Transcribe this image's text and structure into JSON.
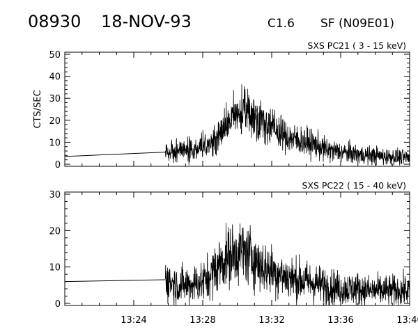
{
  "header": {
    "event_id": "08930",
    "date": "18-NOV-93",
    "goes_class": "C1.6",
    "flare_info": "SF (N09E01)"
  },
  "chart_data": [
    {
      "type": "line",
      "title": "SXS PC21  (  3 - 15 keV)",
      "ylabel": "CTS/SEC",
      "xlabel": "",
      "xlim": [
        "13:20",
        "13:40"
      ],
      "ylim": [
        0,
        50
      ],
      "yticks": [
        0,
        10,
        20,
        30,
        40,
        50
      ],
      "xtick_labels": [],
      "grid": false,
      "series": [
        {
          "x": [
            "13:20:00",
            "13:25:50",
            "13:26:30",
            "13:27:00",
            "13:27:30",
            "13:28:00",
            "13:28:30",
            "13:29:00",
            "13:29:30",
            "13:30:00",
            "13:30:30",
            "13:31:00",
            "13:31:30",
            "13:32:00",
            "13:32:30",
            "13:33:00",
            "13:33:30",
            "13:34:00",
            "13:34:30",
            "13:35:00",
            "13:35:30",
            "13:36:00",
            "13:36:30",
            "13:37:00",
            "13:37:30",
            "13:38:00",
            "13:38:30",
            "13:39:00",
            "13:39:30",
            "13:40:00"
          ],
          "values": [
            3.5,
            5.5,
            6,
            7,
            6.5,
            8,
            9,
            14,
            19,
            23,
            24,
            22,
            20,
            17,
            14,
            12,
            11,
            10,
            9,
            7,
            6,
            5.5,
            5,
            4.5,
            4,
            4,
            3.5,
            3.5,
            3,
            3
          ]
        }
      ]
    },
    {
      "type": "line",
      "title": "SXS PC22  ( 15 - 40 keV)",
      "ylabel": "",
      "xlabel": "",
      "xlim": [
        "13:20",
        "13:40"
      ],
      "ylim": [
        0,
        30
      ],
      "yticks": [
        0,
        10,
        20,
        30
      ],
      "xtick_labels": [
        "13:24",
        "13:28",
        "13:32",
        "13:36",
        "13:40"
      ],
      "grid": false,
      "series": [
        {
          "x": [
            "13:20:00",
            "13:25:50",
            "13:26:30",
            "13:27:00",
            "13:27:30",
            "13:28:00",
            "13:28:30",
            "13:29:00",
            "13:29:30",
            "13:30:00",
            "13:30:30",
            "13:31:00",
            "13:31:30",
            "13:32:00",
            "13:32:30",
            "13:33:00",
            "13:33:30",
            "13:34:00",
            "13:34:30",
            "13:35:00",
            "13:35:30",
            "13:36:00",
            "13:36:30",
            "13:37:00",
            "13:37:30",
            "13:38:00",
            "13:38:30",
            "13:39:00",
            "13:39:30",
            "13:40:00"
          ],
          "values": [
            6,
            6.5,
            5,
            5,
            5.5,
            6,
            8,
            11,
            13,
            14,
            14,
            12,
            10,
            9,
            8,
            7,
            6.5,
            6,
            5.5,
            5,
            4.5,
            4,
            4,
            4,
            3.5,
            3.5,
            3.5,
            3.5,
            3.5,
            3.5
          ]
        }
      ]
    }
  ]
}
